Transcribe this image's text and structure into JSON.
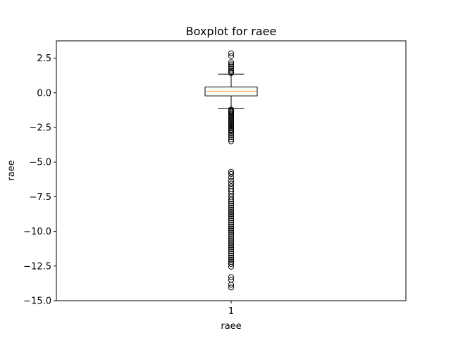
{
  "chart_data": {
    "type": "box",
    "title": "Boxplot for raee",
    "xlabel": "raee",
    "ylabel": "raee",
    "categories": [
      "1"
    ],
    "ylim": [
      -15,
      3.75
    ],
    "yticks": [
      2.5,
      0.0,
      -2.5,
      -5.0,
      -7.5,
      -10.0,
      -12.5,
      -15.0
    ],
    "ytick_labels": [
      "2.5",
      "0.0",
      "−2.5",
      "−5.0",
      "−7.5",
      "−10.0",
      "−12.5",
      "−15.0"
    ],
    "grid": false,
    "box": {
      "whisker_high": 1.35,
      "q3": 0.42,
      "median": 0.12,
      "q1": -0.22,
      "whisker_low": -1.15
    },
    "outliers": [
      2.85,
      2.65,
      2.2,
      2.05,
      1.9,
      1.75,
      1.6,
      1.5,
      1.42,
      -1.2,
      -1.28,
      -1.36,
      -1.45,
      -1.55,
      -1.65,
      -1.75,
      -1.85,
      -1.95,
      -2.05,
      -2.15,
      -2.25,
      -2.35,
      -2.45,
      -2.55,
      -2.65,
      -2.75,
      -2.9,
      -3.05,
      -3.2,
      -3.35,
      -3.5,
      -5.7,
      -5.85,
      -6.1,
      -6.35,
      -6.55,
      -6.75,
      -6.95,
      -7.1,
      -7.3,
      -7.5,
      -7.7,
      -7.85,
      -8.0,
      -8.15,
      -8.3,
      -8.45,
      -8.6,
      -8.75,
      -8.9,
      -9.05,
      -9.2,
      -9.35,
      -9.5,
      -9.65,
      -9.8,
      -9.95,
      -10.1,
      -10.25,
      -10.4,
      -10.55,
      -10.7,
      -10.85,
      -11.0,
      -11.15,
      -11.3,
      -11.45,
      -11.6,
      -11.75,
      -11.9,
      -12.05,
      -12.2,
      -12.35,
      -12.55,
      -13.3,
      -13.5,
      -13.85,
      -14.05
    ],
    "colors": {
      "box": "#000000",
      "median": "#ff7f0e",
      "outlier": "#000000"
    }
  }
}
